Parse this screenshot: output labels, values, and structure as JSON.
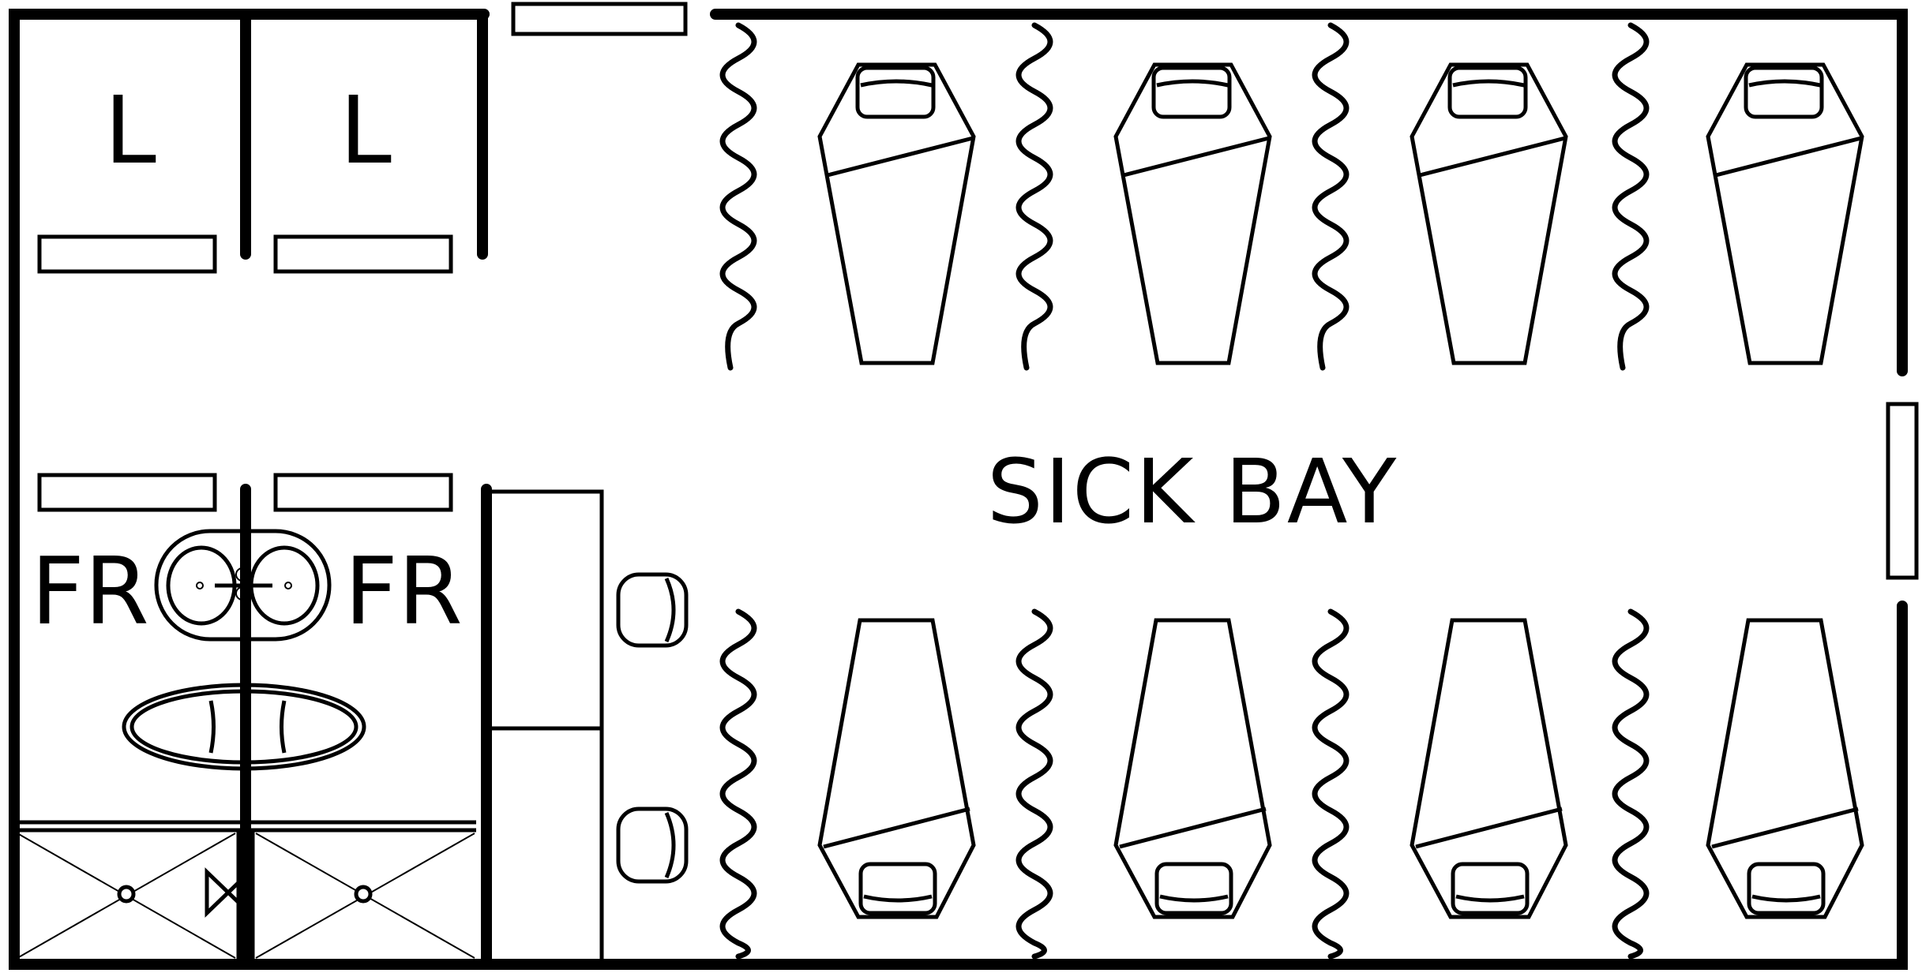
{
  "room": {
    "title": "SICK BAY"
  },
  "closets": {
    "left_label": "L",
    "right_label": "L"
  },
  "fresh_rooms": {
    "left_label": "FR",
    "right_label": "FR"
  },
  "beds": {
    "top_row_count": 4,
    "bottom_row_count": 4
  },
  "chairs": {
    "count": 2
  }
}
